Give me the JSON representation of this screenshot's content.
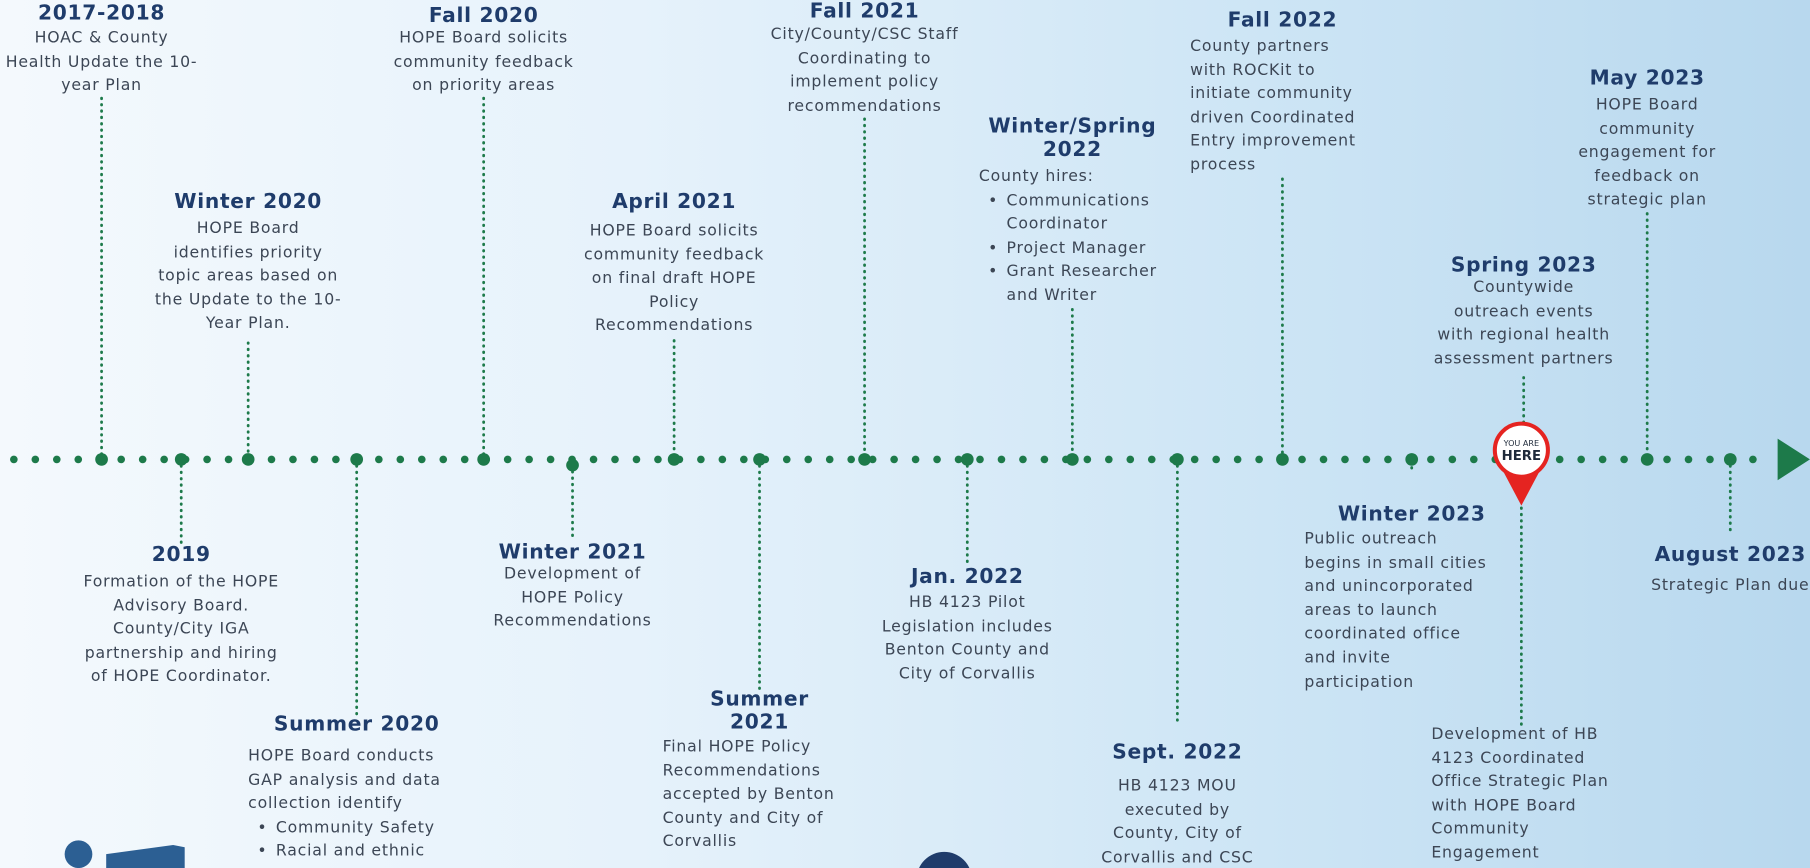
{
  "events": [
    {
      "title": "2017-2018",
      "lines": [
        "HOAC & County",
        "Health Update the 10-",
        "year Plan"
      ]
    },
    {
      "title": "2019",
      "lines": [
        "Formation of the HOPE",
        "Advisory Board.",
        "County/City IGA",
        "partnership and hiring",
        "of HOPE Coordinator."
      ]
    },
    {
      "title": "Winter 2020",
      "lines": [
        "HOPE Board",
        "identifies priority",
        "topic areas based on",
        "the Update to the 10-",
        "Year Plan."
      ]
    },
    {
      "title": "Summer 2020",
      "lines": [
        "HOPE Board conducts",
        "GAP analysis and data",
        "collection identify"
      ],
      "bullets": [
        [
          "Community Safety"
        ],
        [
          "Racial and ethnic"
        ]
      ]
    },
    {
      "title": "Fall 2020",
      "lines": [
        "HOPE Board solicits",
        "community feedback",
        "on priority areas"
      ]
    },
    {
      "title": "Winter 2021",
      "lines": [
        "Development of",
        "HOPE Policy",
        "Recommendations"
      ]
    },
    {
      "title": "April 2021",
      "lines": [
        "HOPE Board solicits",
        "community feedback",
        "on final draft HOPE",
        "Policy",
        "Recommendations"
      ]
    },
    {
      "title": "Summer 2021",
      "lines": [
        "Final HOPE Policy",
        "Recommendations",
        "accepted by Benton",
        "County and City of",
        "Corvallis"
      ]
    },
    {
      "title": "Fall 2021",
      "lines": [
        "City/County/CSC Staff",
        "Coordinating to",
        "implement policy",
        "recommendations"
      ]
    },
    {
      "title": "Jan. 2022",
      "lines": [
        "HB 4123 Pilot",
        "Legislation includes",
        "Benton County and",
        "City of Corvallis"
      ]
    },
    {
      "title": "Winter/Spring 2022",
      "lines": [
        "County hires:"
      ],
      "bullets": [
        [
          "Communications",
          "Coordinator"
        ],
        [
          "Project Manager"
        ],
        [
          "Grant Researcher",
          "and Writer"
        ]
      ]
    },
    {
      "title": "Sept. 2022",
      "lines": [
        "HB 4123 MOU",
        "executed by",
        "County, City of",
        "Corvallis and CSC"
      ]
    },
    {
      "title": "Fall 2022",
      "lines": [
        "County partners",
        "with ROCKit to",
        "initiate community",
        "driven Coordinated",
        "Entry improvement",
        "process"
      ]
    },
    {
      "title": "Winter 2023",
      "lines": [
        "Public outreach",
        "begins in small cities",
        "and unincorporated",
        "areas to launch",
        "coordinated office",
        "and invite",
        "participation"
      ]
    },
    {
      "title": "Spring 2023",
      "lines": [
        "Countywide",
        "outreach events",
        "with regional health",
        "assessment partners"
      ]
    },
    {
      "title": "May 2023",
      "lines": [
        "HOPE Board",
        "community",
        "engagement for",
        "feedback on",
        "strategic plan"
      ]
    },
    {
      "title": "August 2023",
      "lines": [
        "Strategic Plan due"
      ]
    }
  ],
  "note": {
    "lines": [
      "Development of HB",
      "4123 Coordinated",
      "Office Strategic Plan",
      "with HOPE Board",
      "Community",
      "Engagement"
    ]
  },
  "marker": {
    "lines": [
      "YOU ARE",
      "HERE"
    ]
  }
}
